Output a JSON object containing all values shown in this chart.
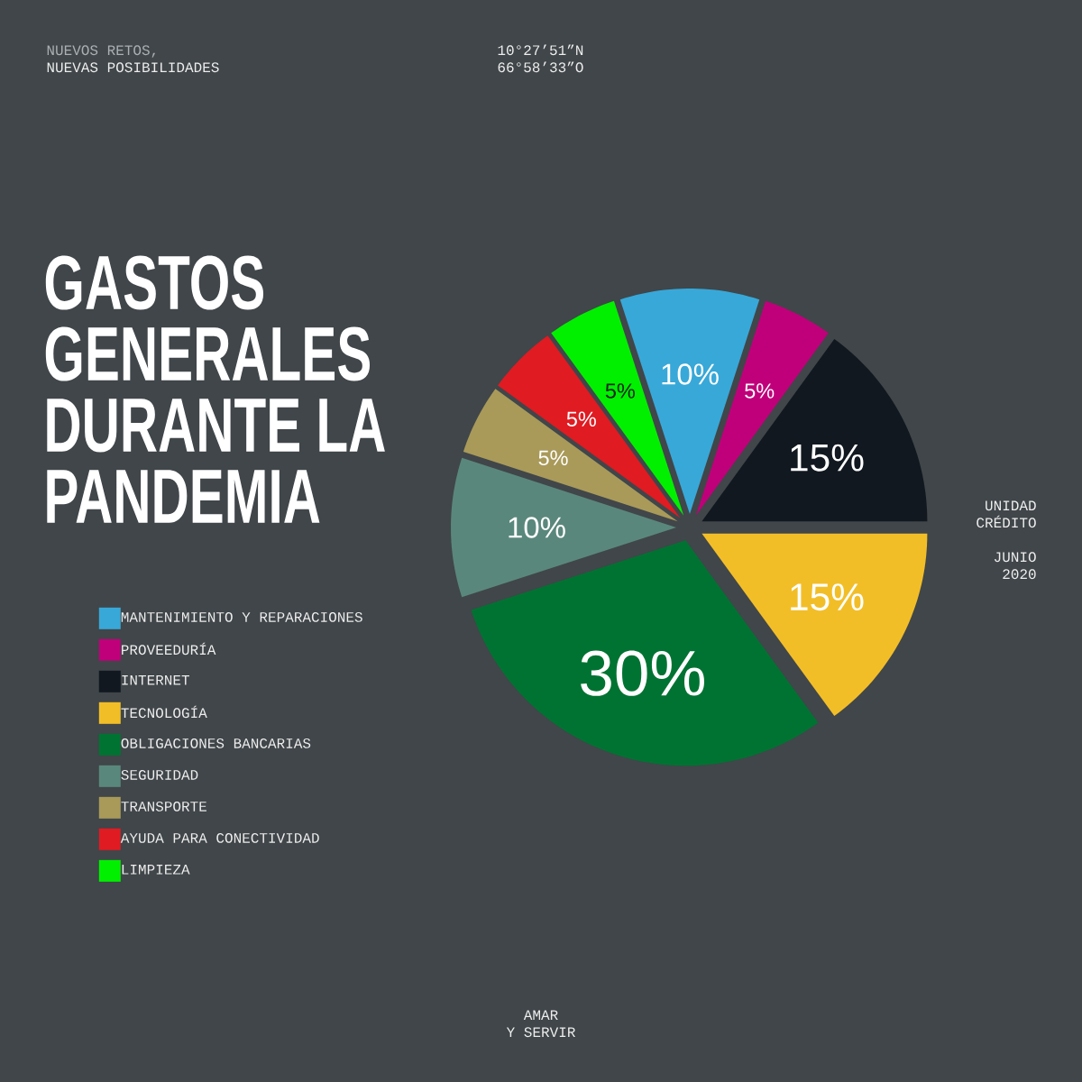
{
  "chart_data": {
    "type": "pie",
    "title": "GASTOS GENERALES DURANTE LA PANDEMIA",
    "categories": [
      "MANTENIMIENTO Y REPARACIONES",
      "PROVEEDURÍA",
      "INTERNET",
      "TECNOLOGÍA",
      "OBLIGACIONES BANCARIAS",
      "SEGURIDAD",
      "TRANSPORTE",
      "AYUDA PARA CONECTIVIDAD",
      "LIMPIEZA"
    ],
    "values": [
      10,
      5,
      15,
      15,
      30,
      10,
      5,
      5,
      5
    ],
    "colors": [
      "#38a8d8",
      "#c0007a",
      "#111820",
      "#f2be28",
      "#007332",
      "#5a877c",
      "#a99a5a",
      "#e01b22",
      "#00f000"
    ],
    "value_labels": [
      "10%",
      "5%",
      "15%",
      "15%",
      "30%",
      "10%",
      "5%",
      "5%",
      "5%"
    ],
    "legend": "left",
    "annotations": [
      "NUEVOS RETOS,",
      "NUEVAS POSIBILIDADES",
      "10°27’51”N",
      "66°58’33”O",
      "UNIDAD",
      "CRÉDITO",
      "JUNIO",
      "2020",
      "AMAR",
      "Y SERVIR"
    ]
  }
}
